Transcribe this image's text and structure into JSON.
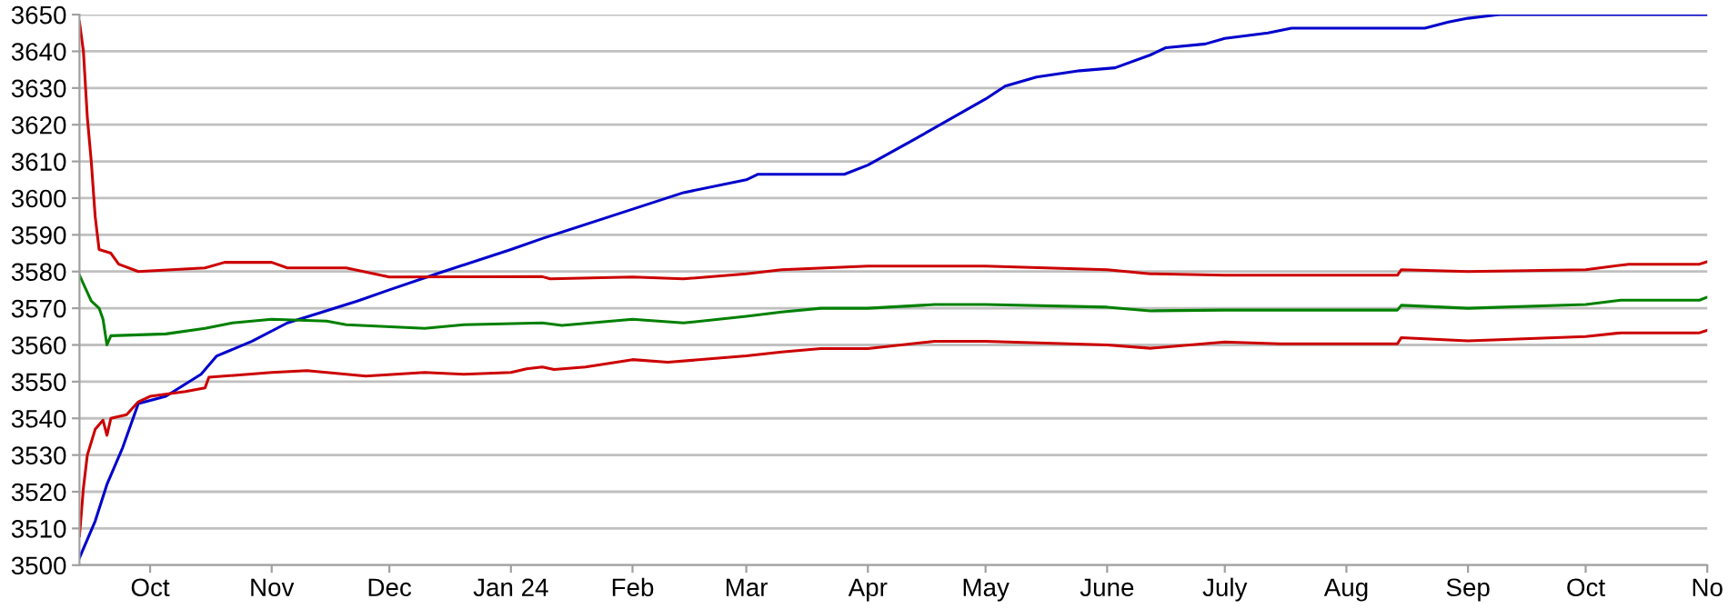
{
  "chart_data": {
    "type": "line",
    "xlim": [
      "2023-09-13",
      "2024-11-01"
    ],
    "ylim": [
      3500,
      3650
    ],
    "yticks": [
      3500,
      3510,
      3520,
      3530,
      3540,
      3550,
      3560,
      3570,
      3580,
      3590,
      3600,
      3610,
      3620,
      3630,
      3640,
      3650
    ],
    "xticks": [
      {
        "value": "2023-10-01",
        "label": "Oct"
      },
      {
        "value": "2023-11-01",
        "label": "Nov"
      },
      {
        "value": "2023-12-01",
        "label": "Dec"
      },
      {
        "value": "2024-01-01",
        "label": "Jan 24"
      },
      {
        "value": "2024-02-01",
        "label": "Feb"
      },
      {
        "value": "2024-03-01",
        "label": "Mar"
      },
      {
        "value": "2024-04-01",
        "label": "Apr"
      },
      {
        "value": "2024-05-01",
        "label": "May"
      },
      {
        "value": "2024-06-01",
        "label": "June"
      },
      {
        "value": "2024-07-01",
        "label": "July"
      },
      {
        "value": "2024-08-01",
        "label": "Aug"
      },
      {
        "value": "2024-09-01",
        "label": "Sep"
      },
      {
        "value": "2024-10-01",
        "label": "Oct"
      },
      {
        "value": "2024-11-01",
        "label": "No"
      }
    ],
    "grid": "y",
    "marker": "none",
    "line_style": "solid",
    "series": [
      {
        "color": "#0000cc",
        "x": [
          "2023-09-13",
          "2023-09-17",
          "2023-09-20",
          "2023-09-24",
          "2023-09-28",
          "2023-10-05",
          "2023-10-14",
          "2023-10-18",
          "2023-10-27",
          "2023-11-05",
          "2023-11-11",
          "2023-11-23",
          "2023-12-01",
          "2023-12-12",
          "2024-01-01",
          "2024-01-09",
          "2024-02-01",
          "2024-02-14",
          "2024-03-01",
          "2024-03-04",
          "2024-03-26",
          "2024-04-01",
          "2024-04-12",
          "2024-05-01",
          "2024-05-06",
          "2024-05-14",
          "2024-05-25",
          "2024-06-03",
          "2024-06-12",
          "2024-06-16",
          "2024-06-26",
          "2024-07-01",
          "2024-07-12",
          "2024-07-18",
          "2024-08-21",
          "2024-08-27",
          "2024-09-01",
          "2024-09-09",
          "2024-11-01"
        ],
        "values": [
          3502,
          3512,
          3522,
          3532,
          3544,
          3546,
          3552,
          3557,
          3561,
          3566,
          3568,
          3572,
          3575,
          3579,
          3586,
          3589,
          3597,
          3601.5,
          3605,
          3606.5,
          3606.5,
          3609,
          3615.5,
          3627,
          3630.5,
          3633,
          3634.7,
          3635.5,
          3639,
          3641,
          3642,
          3643.5,
          3645,
          3646.3,
          3646.3,
          3648,
          3649,
          3650,
          3650
        ]
      },
      {
        "color": "#cc0000",
        "x": [
          "2023-09-13",
          "2023-09-14",
          "2023-09-15",
          "2023-09-16",
          "2023-09-17",
          "2023-09-18",
          "2023-09-21",
          "2023-09-23",
          "2023-09-28",
          "2023-10-15",
          "2023-10-20",
          "2023-11-01",
          "2023-11-05",
          "2023-11-20",
          "2023-12-01",
          "2024-01-09",
          "2024-01-11",
          "2024-02-01",
          "2024-02-14",
          "2024-03-01",
          "2024-03-10",
          "2024-04-01",
          "2024-05-01",
          "2024-06-01",
          "2024-06-12",
          "2024-07-01",
          "2024-08-14",
          "2024-08-15",
          "2024-09-01",
          "2024-10-01",
          "2024-10-12",
          "2024-10-30",
          "2024-11-01"
        ],
        "values": [
          3648,
          3640,
          3622,
          3610,
          3595,
          3586,
          3585,
          3582,
          3580,
          3581,
          3582.5,
          3582.5,
          3581,
          3581,
          3578.5,
          3578.6,
          3578,
          3578.5,
          3578,
          3579.4,
          3580.5,
          3581.5,
          3581.5,
          3580.5,
          3579.4,
          3579,
          3579,
          3580.5,
          3580,
          3580.5,
          3582,
          3582,
          3582.7
        ]
      },
      {
        "color": "#008000",
        "x": [
          "2023-09-13",
          "2023-09-16",
          "2023-09-18",
          "2023-09-19",
          "2023-09-20",
          "2023-09-21",
          "2023-10-05",
          "2023-10-15",
          "2023-10-22",
          "2023-11-01",
          "2023-11-15",
          "2023-11-20",
          "2023-12-10",
          "2023-12-20",
          "2024-01-09",
          "2024-01-14",
          "2024-02-01",
          "2024-02-14",
          "2024-03-01",
          "2024-03-10",
          "2024-03-20",
          "2024-04-01",
          "2024-04-18",
          "2024-05-01",
          "2024-06-01",
          "2024-06-12",
          "2024-07-01",
          "2024-08-14",
          "2024-08-15",
          "2024-09-01",
          "2024-10-01",
          "2024-10-10",
          "2024-10-30",
          "2024-11-01"
        ],
        "values": [
          3579,
          3572,
          3570,
          3567,
          3560,
          3562.5,
          3563,
          3564.5,
          3566,
          3567,
          3566.5,
          3565.5,
          3564.5,
          3565.5,
          3566,
          3565.3,
          3567,
          3566,
          3567.8,
          3569,
          3570,
          3570,
          3571,
          3571,
          3570.3,
          3569.3,
          3569.5,
          3569.5,
          3570.8,
          3570,
          3571,
          3572.2,
          3572.2,
          3573
        ]
      },
      {
        "color": "#cc0000",
        "x": [
          "2023-09-13",
          "2023-09-14",
          "2023-09-15",
          "2023-09-17",
          "2023-09-19",
          "2023-09-20",
          "2023-09-21",
          "2023-09-25",
          "2023-09-28",
          "2023-10-01",
          "2023-10-10",
          "2023-10-15",
          "2023-10-16",
          "2023-11-01",
          "2023-11-10",
          "2023-11-25",
          "2023-12-10",
          "2023-12-20",
          "2024-01-01",
          "2024-01-05",
          "2024-01-09",
          "2024-01-12",
          "2024-01-20",
          "2024-02-01",
          "2024-02-10",
          "2024-03-01",
          "2024-03-10",
          "2024-03-20",
          "2024-04-01",
          "2024-04-18",
          "2024-05-01",
          "2024-06-01",
          "2024-06-12",
          "2024-07-01",
          "2024-07-15",
          "2024-08-14",
          "2024-08-15",
          "2024-09-01",
          "2024-10-01",
          "2024-10-10",
          "2024-10-30",
          "2024-11-01"
        ],
        "values": [
          3508,
          3521,
          3530,
          3537,
          3539.5,
          3535.4,
          3540,
          3541,
          3544.5,
          3546,
          3547.3,
          3548.3,
          3551.2,
          3552.5,
          3553,
          3551.5,
          3552.5,
          3552,
          3552.5,
          3553.5,
          3554,
          3553.3,
          3554,
          3556,
          3555.3,
          3557,
          3558.1,
          3559,
          3559,
          3561,
          3561,
          3560,
          3559.1,
          3560.8,
          3560.3,
          3560.3,
          3562,
          3561.1,
          3562.3,
          3563.3,
          3563.3,
          3564
        ]
      }
    ]
  }
}
